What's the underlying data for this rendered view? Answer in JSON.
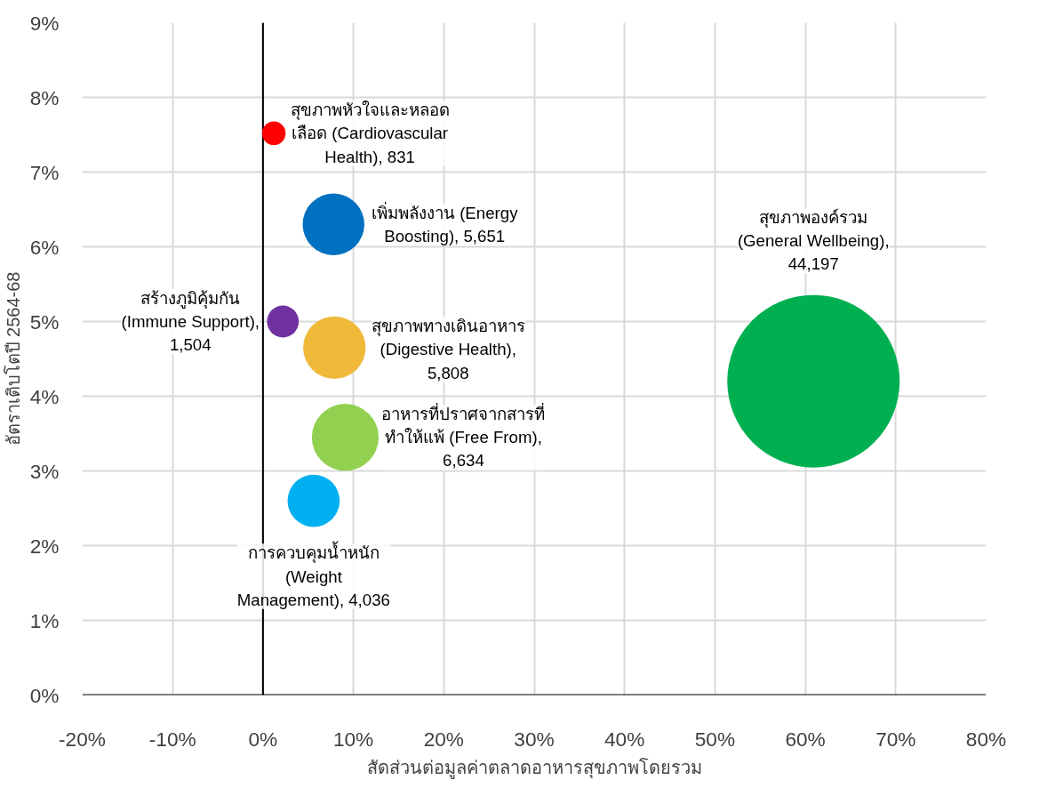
{
  "chart_data": {
    "type": "bubble",
    "xlabel": "สัดส่วนต่อมูลค่าตลาดอาหารสุขภาพโดยรวม",
    "ylabel": "อัตราเติบโตปี 2564-68",
    "series": [
      {
        "color": "#ff0000",
        "x": [
          1.2
        ],
        "values": [
          7.52
        ],
        "sizes": [
          831
        ],
        "value_labels": [
          "สุขภาพหัวใจและหลอด\nเลือด (Cardiovascular\nHealth), 831"
        ]
      },
      {
        "color": "#0070c0",
        "x": [
          7.8
        ],
        "values": [
          6.3
        ],
        "sizes": [
          5651
        ],
        "value_labels": [
          "เพิ่มพลังงาน (Energy\nBoosting), 5,651"
        ]
      },
      {
        "color": "#7030a0",
        "x": [
          2.2
        ],
        "values": [
          5.0
        ],
        "sizes": [
          1504
        ],
        "value_labels": [
          "สร้างภูมิคุ้มกัน\n(Immune Support),\n1,504"
        ]
      },
      {
        "color": "#f0b93a",
        "x": [
          7.9
        ],
        "values": [
          4.65
        ],
        "sizes": [
          5808
        ],
        "value_labels": [
          "สุขภาพทางเดินอาหาร\n(Digestive Health),\n5,808"
        ]
      },
      {
        "color": "#92d050",
        "x": [
          9.1
        ],
        "values": [
          3.45
        ],
        "sizes": [
          6634
        ],
        "value_labels": [
          "อาหารที่ปราศจากสารที่\nทำให้แพ้ (Free From),\n6,634"
        ]
      },
      {
        "color": "#00b0f0",
        "x": [
          5.6
        ],
        "values": [
          2.6
        ],
        "sizes": [
          4036
        ],
        "value_labels": [
          "การควบคุมน้ำหนัก\n(Weight\nManagement), 4,036"
        ]
      },
      {
        "color": "#00b050",
        "x": [
          60.9
        ],
        "values": [
          4.2
        ],
        "sizes": [
          44197
        ],
        "value_labels": [
          "สุขภาพองค์รวม\n(General Wellbeing),\n44,197"
        ]
      }
    ],
    "xlim": [
      -20,
      80
    ],
    "xticks": [
      {
        "value": -20,
        "label": "-20%"
      },
      {
        "value": -10,
        "label": "-10%"
      },
      {
        "value": 0,
        "label": "0%"
      },
      {
        "value": 10,
        "label": "10%"
      },
      {
        "value": 20,
        "label": "20%"
      },
      {
        "value": 30,
        "label": "30%"
      },
      {
        "value": 40,
        "label": "40%"
      },
      {
        "value": 50,
        "label": "50%"
      },
      {
        "value": 60,
        "label": "60%"
      },
      {
        "value": 70,
        "label": "70%"
      },
      {
        "value": 80,
        "label": "80%"
      }
    ],
    "ylim": [
      0,
      9
    ],
    "yticks": [
      {
        "value": 0,
        "label": "0%"
      },
      {
        "value": 1,
        "label": "1%"
      },
      {
        "value": 2,
        "label": "2%"
      },
      {
        "value": 3,
        "label": "3%"
      },
      {
        "value": 4,
        "label": "4%"
      },
      {
        "value": 5,
        "label": "5%"
      },
      {
        "value": 6,
        "label": "6%"
      },
      {
        "value": 7,
        "label": "7%"
      },
      {
        "value": 8,
        "label": "8%"
      },
      {
        "value": 9,
        "label": "9%"
      }
    ],
    "ref_lines": [
      {
        "axis": "x",
        "value": 0,
        "color": "#000000"
      }
    ],
    "grid": true
  }
}
